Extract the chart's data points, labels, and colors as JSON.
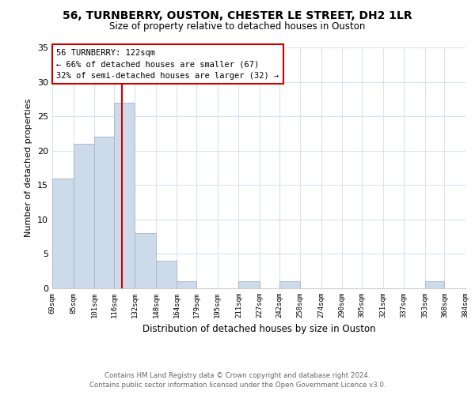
{
  "title": "56, TURNBERRY, OUSTON, CHESTER LE STREET, DH2 1LR",
  "subtitle": "Size of property relative to detached houses in Ouston",
  "xlabel": "Distribution of detached houses by size in Ouston",
  "ylabel": "Number of detached properties",
  "bar_color": "#ccdaea",
  "bar_edge_color": "#aabccc",
  "reference_line_x": 122,
  "reference_line_color": "#cc0000",
  "bins": [
    69,
    85,
    101,
    116,
    132,
    148,
    164,
    179,
    195,
    211,
    227,
    242,
    258,
    274,
    290,
    305,
    321,
    337,
    353,
    368,
    384
  ],
  "counts": [
    16,
    21,
    22,
    27,
    8,
    4,
    1,
    0,
    0,
    1,
    0,
    1,
    0,
    0,
    0,
    0,
    0,
    0,
    1,
    0
  ],
  "tick_labels": [
    "69sqm",
    "85sqm",
    "101sqm",
    "116sqm",
    "132sqm",
    "148sqm",
    "164sqm",
    "179sqm",
    "195sqm",
    "211sqm",
    "227sqm",
    "242sqm",
    "258sqm",
    "274sqm",
    "290sqm",
    "305sqm",
    "321sqm",
    "337sqm",
    "353sqm",
    "368sqm",
    "384sqm"
  ],
  "ylim": [
    0,
    35
  ],
  "yticks": [
    0,
    5,
    10,
    15,
    20,
    25,
    30,
    35
  ],
  "annotation_title": "56 TURNBERRY: 122sqm",
  "annotation_line1": "← 66% of detached houses are smaller (67)",
  "annotation_line2": "32% of semi-detached houses are larger (32) →",
  "annotation_box_color": "#ffffff",
  "annotation_box_edge": "#cc0000",
  "footer_line1": "Contains HM Land Registry data © Crown copyright and database right 2024.",
  "footer_line2": "Contains public sector information licensed under the Open Government Licence v3.0.",
  "background_color": "#ffffff",
  "grid_color": "#d8e4f0"
}
